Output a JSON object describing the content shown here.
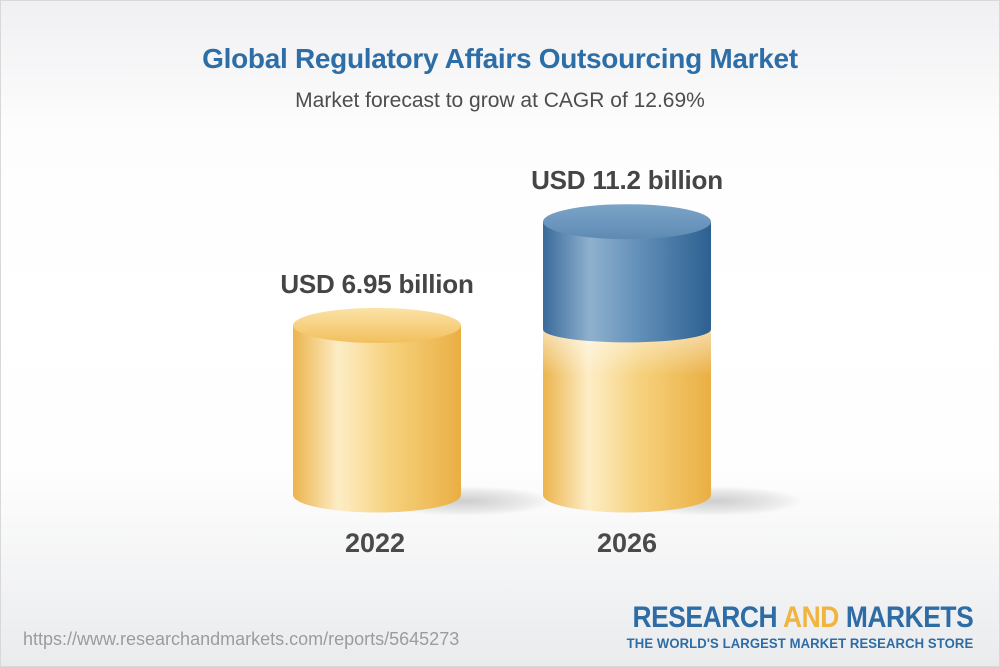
{
  "header": {
    "title": "Global Regulatory Affairs Outsourcing Market",
    "subtitle": "Market forecast to grow at CAGR of 12.69%"
  },
  "chart_data": {
    "type": "bar",
    "subtype": "3d-cylinder",
    "unit": "USD billion",
    "categories": [
      "2022",
      "2026"
    ],
    "values": [
      6.95,
      11.2
    ],
    "stacks": [
      {
        "category": "2022",
        "base": 6.95,
        "growth": 0
      },
      {
        "category": "2026",
        "base": 6.95,
        "growth": 4.25
      }
    ],
    "value_labels": [
      "USD 6.95 billion",
      "USD 11.2 billion"
    ],
    "cagr_percent": 12.69,
    "ylim": [
      0,
      11.2
    ],
    "grid": false,
    "legend": "none",
    "colors": {
      "yellow_body": [
        "#ecb44c",
        "#fdedc6",
        "#f6d17c",
        "#eaaf44"
      ],
      "yellow_top": [
        "#fbe3a8",
        "#f2c05c"
      ],
      "blue_body": [
        "#3a6a9b",
        "#8eb1ce",
        "#5e8cb6",
        "#2d6191"
      ],
      "blue_top": [
        "#7ca4c8",
        "#5e8ab3"
      ],
      "label_text": "#454545",
      "shadow": "#6e6e6e"
    }
  },
  "footer": {
    "url": "https://www.researchandmarkets.com/reports/5645273",
    "logo": {
      "word1": "RESEARCH",
      "word2": "AND",
      "word3": "MARKETS",
      "tagline": "THE WORLD'S LARGEST MARKET RESEARCH STORE",
      "blue": "#2d6ca4",
      "gold": "#f0b43f"
    }
  },
  "colors": {
    "title_blue": "#2d6ea6",
    "subtitle_gray": "#4d4d4d",
    "url_gray": "#9c9c9c"
  }
}
